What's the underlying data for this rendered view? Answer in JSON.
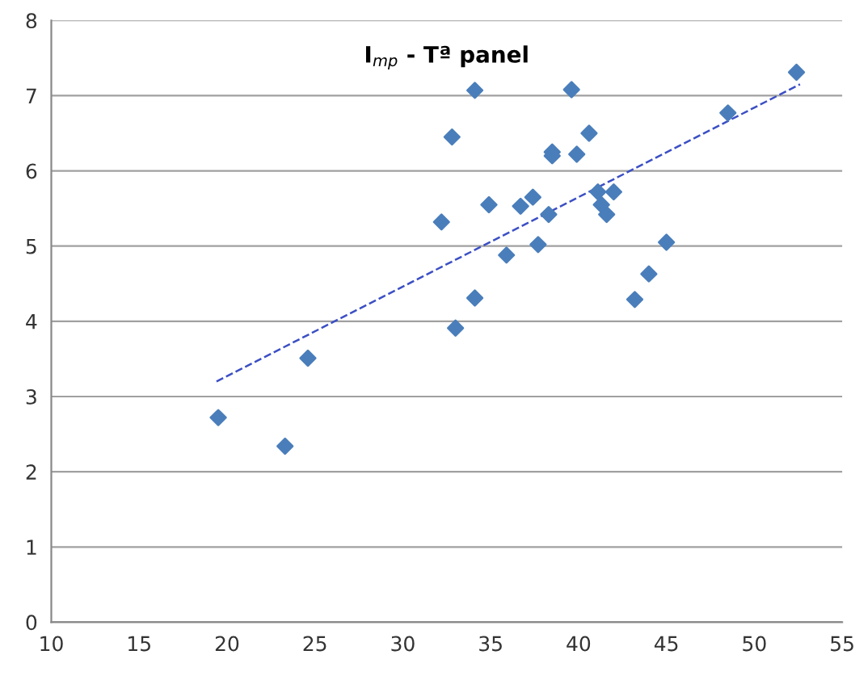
{
  "chart_data": {
    "type": "scatter",
    "title": "I$_{mp}$ - Tª panel",
    "series": [
      {
        "color": "#4a7ebb",
        "marker": "diamond",
        "x": [
          19.5,
          23.3,
          24.6,
          32.2,
          32.8,
          33.0,
          34.1,
          34.1,
          34.9,
          35.9,
          36.7,
          37.4,
          37.7,
          38.3,
          38.5,
          38.5,
          39.6,
          39.9,
          40.6,
          41.1,
          41.3,
          41.6,
          42.0,
          43.2,
          44.0,
          45.0,
          48.5,
          52.4
        ],
        "values": [
          2.72,
          2.34,
          3.51,
          5.32,
          6.45,
          3.91,
          7.07,
          4.31,
          5.55,
          4.88,
          5.53,
          5.65,
          5.02,
          5.42,
          6.25,
          6.2,
          7.08,
          6.22,
          6.5,
          5.72,
          5.55,
          5.42,
          5.72,
          4.29,
          4.63,
          5.05,
          6.77,
          7.31
        ]
      },
      {
        "type": "line",
        "color": "#3b4fc4",
        "line_style": "dashed",
        "marker": "none",
        "x": [
          19.4,
          52.6
        ],
        "values": [
          3.2,
          7.15
        ]
      }
    ],
    "xlim": [
      10,
      55
    ],
    "ylim": [
      0,
      8
    ],
    "xticks": [
      10,
      15,
      20,
      25,
      30,
      35,
      40,
      45,
      50,
      55
    ],
    "yticks": [
      0,
      1,
      2,
      3,
      4,
      5,
      6,
      7,
      8
    ],
    "grid": "y",
    "legend": false
  }
}
